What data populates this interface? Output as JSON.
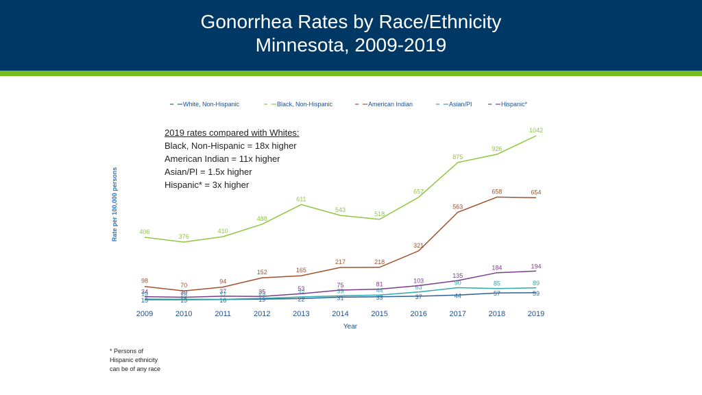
{
  "slide": {
    "title_line1": "Gonorrhea Rates by Race/Ethnicity",
    "title_line2": "Minnesota, 2009-2019"
  },
  "comparison": {
    "heading": "2019 rates compared with Whites:",
    "lines": [
      "Black, Non-Hispanic = 18x higher",
      "American Indian = 11x higher",
      "Asian/PI = 1.5x higher",
      "Hispanic* = 3x higher"
    ]
  },
  "footnote": [
    "* Persons of",
    "Hispanic ethnicity",
    "can be of any race"
  ],
  "chart_data": {
    "type": "line",
    "x": [
      "2009",
      "2010",
      "2011",
      "2012",
      "2013",
      "2014",
      "2015",
      "2016",
      "2017",
      "2018",
      "2019"
    ],
    "xlabel": "Year",
    "ylabel": "Rate per 100,000 persons",
    "ylim": [
      0,
      1100
    ],
    "grid": false,
    "legend_position": "top",
    "series": [
      {
        "name": "White, Non-Hispanic",
        "color": "#2a6099",
        "values": [
          15,
          15,
          16,
          19,
          22,
          31,
          33,
          37,
          44,
          57,
          59
        ]
      },
      {
        "name": "Black, Non-Hispanic",
        "color": "#8dc63f",
        "values": [
          406,
          376,
          410,
          488,
          611,
          543,
          518,
          657,
          875,
          926,
          1042
        ]
      },
      {
        "name": "American Indian",
        "color": "#a0522d",
        "values": [
          98,
          70,
          94,
          152,
          165,
          217,
          218,
          321,
          563,
          658,
          654
        ]
      },
      {
        "name": "Asian/PI",
        "color": "#31a7a7",
        "values": [
          19,
          18,
          17,
          23,
          32,
          39,
          44,
          63,
          90,
          85,
          89
        ]
      },
      {
        "name": "Hispanic*",
        "color": "#7a3b8c",
        "values": [
          34,
          30,
          37,
          35,
          53,
          75,
          81,
          103,
          135,
          184,
          194
        ]
      }
    ]
  }
}
